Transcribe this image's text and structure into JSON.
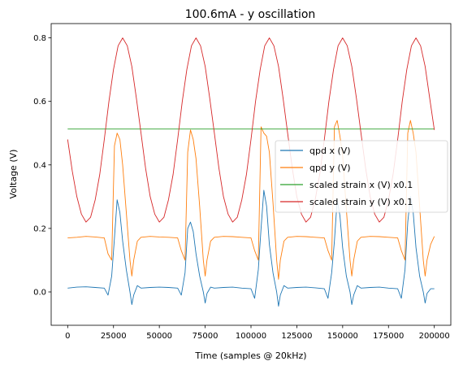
{
  "chart_data": {
    "type": "line",
    "title": "100.6mA - y oscillation",
    "xlabel": "Time (samples @ 20kHz)",
    "ylabel": "Voltage (V)",
    "xlim": [
      -9000,
      209000
    ],
    "ylim": [
      -0.105,
      0.845
    ],
    "xticks": [
      0,
      25000,
      50000,
      75000,
      100000,
      125000,
      150000,
      175000,
      200000
    ],
    "yticks": [
      0.0,
      0.2,
      0.4,
      0.6,
      0.8
    ],
    "ytick_labels": [
      "0.0",
      "0.2",
      "0.4",
      "0.6",
      "0.8"
    ],
    "grid": false,
    "legend_position": "center-right",
    "series": [
      {
        "name": "qpd x (V)",
        "color": "#1f77b4",
        "x": [
          0,
          5000,
          10000,
          15000,
          20000,
          22000,
          24000,
          25500,
          27000,
          28500,
          30000,
          32000,
          34000,
          35000,
          36000,
          38000,
          40000,
          45000,
          50000,
          55000,
          60000,
          62000,
          64000,
          65500,
          67000,
          68500,
          70000,
          72000,
          74000,
          75000,
          76000,
          78000,
          80000,
          85000,
          90000,
          95000,
          100000,
          102000,
          104000,
          105500,
          107000,
          108500,
          110000,
          112000,
          114000,
          115000,
          116000,
          118000,
          120000,
          125000,
          130000,
          135000,
          140000,
          142000,
          144000,
          145500,
          147000,
          148500,
          150000,
          152000,
          154000,
          155000,
          156000,
          158000,
          160000,
          165000,
          170000,
          175000,
          180000,
          182000,
          184000,
          185500,
          187000,
          188500,
          190000,
          192000,
          194000,
          195000,
          196000,
          198000,
          200000
        ],
        "y": [
          0.012,
          0.015,
          0.016,
          0.014,
          0.012,
          -0.01,
          0.05,
          0.17,
          0.29,
          0.25,
          0.16,
          0.07,
          0.0,
          -0.04,
          -0.01,
          0.02,
          0.012,
          0.014,
          0.015,
          0.014,
          0.012,
          -0.01,
          0.06,
          0.2,
          0.22,
          0.19,
          0.12,
          0.05,
          0.0,
          -0.035,
          -0.005,
          0.015,
          0.012,
          0.014,
          0.015,
          0.012,
          0.01,
          -0.02,
          0.07,
          0.2,
          0.32,
          0.27,
          0.15,
          0.06,
          0.0,
          -0.045,
          -0.01,
          0.02,
          0.012,
          0.014,
          0.015,
          0.013,
          0.01,
          -0.02,
          0.06,
          0.16,
          0.29,
          0.24,
          0.14,
          0.05,
          0.0,
          -0.04,
          -0.01,
          0.02,
          0.012,
          0.014,
          0.015,
          0.012,
          0.01,
          -0.02,
          0.07,
          0.22,
          0.3,
          0.25,
          0.14,
          0.05,
          0.0,
          -0.035,
          -0.005,
          0.01,
          0.01
        ]
      },
      {
        "name": "qpd y (V)",
        "color": "#ff7f0e",
        "x": [
          0,
          5000,
          10000,
          15000,
          20000,
          22000,
          24000,
          25500,
          27000,
          28500,
          30000,
          32000,
          34000,
          35000,
          36000,
          38000,
          40000,
          45000,
          50000,
          55000,
          60000,
          62000,
          64000,
          65500,
          67000,
          68500,
          70000,
          72000,
          74000,
          75000,
          76000,
          78000,
          80000,
          85000,
          90000,
          95000,
          100000,
          102000,
          104000,
          105500,
          107000,
          108500,
          110000,
          112000,
          114000,
          115000,
          116000,
          118000,
          120000,
          125000,
          130000,
          135000,
          140000,
          142000,
          144000,
          145500,
          147000,
          148500,
          150000,
          152000,
          154000,
          155000,
          156000,
          158000,
          160000,
          165000,
          170000,
          175000,
          180000,
          182000,
          184000,
          185500,
          187000,
          188500,
          190000,
          192000,
          194000,
          195000,
          196000,
          198000,
          200000
        ],
        "y": [
          0.17,
          0.172,
          0.175,
          0.173,
          0.17,
          0.12,
          0.1,
          0.46,
          0.5,
          0.48,
          0.4,
          0.25,
          0.1,
          0.05,
          0.1,
          0.16,
          0.172,
          0.175,
          0.173,
          0.172,
          0.17,
          0.13,
          0.1,
          0.44,
          0.51,
          0.48,
          0.42,
          0.27,
          0.1,
          0.05,
          0.1,
          0.16,
          0.172,
          0.175,
          0.174,
          0.172,
          0.17,
          0.13,
          0.1,
          0.52,
          0.5,
          0.49,
          0.44,
          0.28,
          0.1,
          0.04,
          0.1,
          0.16,
          0.172,
          0.175,
          0.174,
          0.172,
          0.17,
          0.13,
          0.1,
          0.52,
          0.54,
          0.49,
          0.43,
          0.26,
          0.1,
          0.05,
          0.1,
          0.16,
          0.172,
          0.175,
          0.174,
          0.172,
          0.17,
          0.13,
          0.1,
          0.5,
          0.54,
          0.5,
          0.44,
          0.27,
          0.1,
          0.05,
          0.1,
          0.15,
          0.175
        ]
      },
      {
        "name": "scaled strain x (V) x0.1",
        "color": "#2ca02c",
        "x": [
          0,
          200000
        ],
        "y": [
          0.513,
          0.513
        ]
      },
      {
        "name": "scaled strain y (V) x0.1",
        "color": "#d62728",
        "x": [
          0,
          2500,
          5000,
          7500,
          10000,
          12500,
          15000,
          17500,
          20000,
          22500,
          25000,
          27500,
          30000,
          32500,
          35000,
          37500,
          40000,
          42500,
          45000,
          47500,
          50000,
          52500,
          55000,
          57500,
          60000,
          62500,
          65000,
          67500,
          70000,
          72500,
          75000,
          77500,
          80000,
          82500,
          85000,
          87500,
          90000,
          92500,
          95000,
          97500,
          100000,
          102500,
          105000,
          107500,
          110000,
          112500,
          115000,
          117500,
          120000,
          122500,
          125000,
          127500,
          130000,
          132500,
          135000,
          137500,
          140000,
          142500,
          145000,
          147500,
          150000,
          152500,
          155000,
          157500,
          160000,
          162500,
          165000,
          167500,
          170000,
          172500,
          175000,
          177500,
          180000,
          182500,
          185000,
          187500,
          190000,
          192500,
          195000,
          197500,
          200000
        ],
        "y": [
          0.48,
          0.38,
          0.3,
          0.245,
          0.22,
          0.235,
          0.29,
          0.37,
          0.48,
          0.6,
          0.7,
          0.775,
          0.8,
          0.775,
          0.71,
          0.61,
          0.5,
          0.39,
          0.3,
          0.245,
          0.22,
          0.235,
          0.29,
          0.37,
          0.48,
          0.6,
          0.7,
          0.775,
          0.8,
          0.775,
          0.71,
          0.61,
          0.5,
          0.39,
          0.3,
          0.245,
          0.22,
          0.235,
          0.29,
          0.37,
          0.48,
          0.6,
          0.7,
          0.775,
          0.8,
          0.775,
          0.71,
          0.61,
          0.5,
          0.39,
          0.3,
          0.245,
          0.22,
          0.235,
          0.29,
          0.37,
          0.48,
          0.6,
          0.7,
          0.775,
          0.8,
          0.775,
          0.71,
          0.61,
          0.5,
          0.39,
          0.3,
          0.245,
          0.22,
          0.235,
          0.29,
          0.37,
          0.48,
          0.6,
          0.7,
          0.775,
          0.8,
          0.775,
          0.71,
          0.61,
          0.51
        ]
      }
    ]
  }
}
